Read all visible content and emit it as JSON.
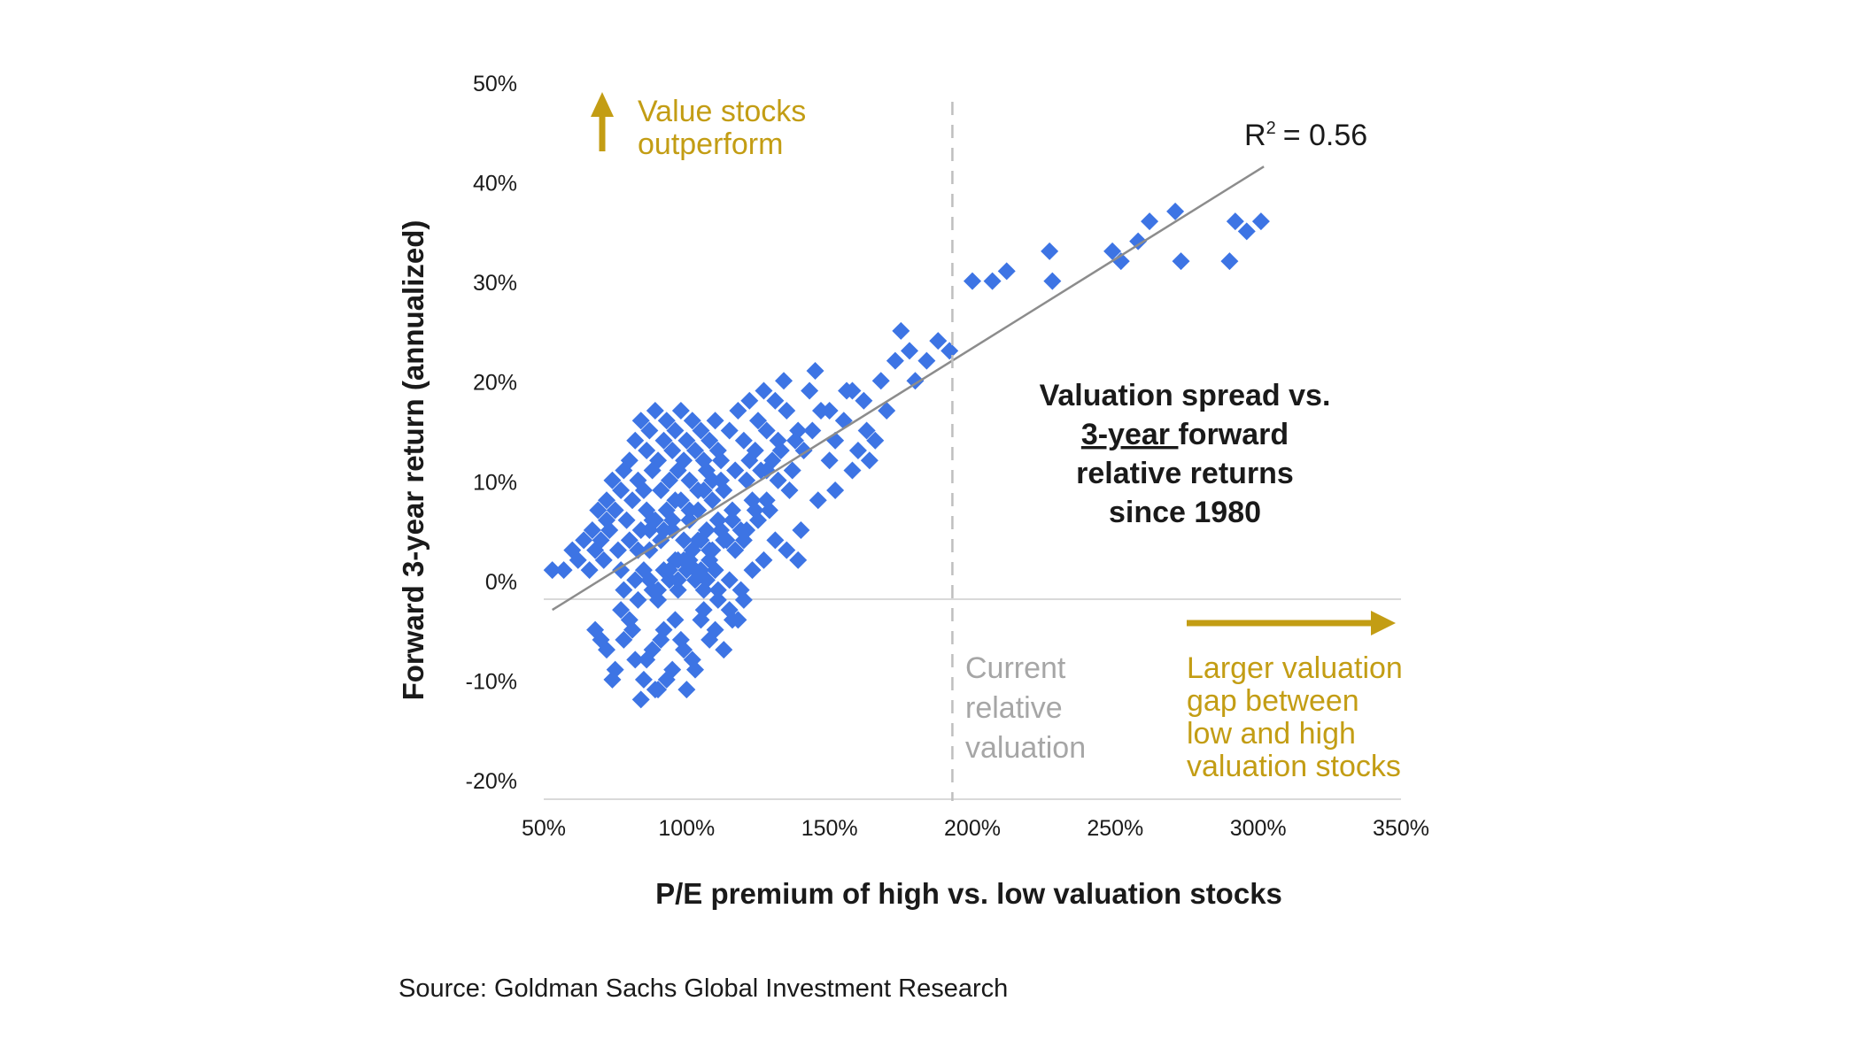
{
  "chart_data": {
    "type": "scatter",
    "title": "",
    "xlabel": "P/E premium of high vs. low valuation stocks",
    "ylabel": "Forward 3-year return (annualized)",
    "xlim": [
      50,
      350
    ],
    "ylim": [
      -20,
      50
    ],
    "x_ticks": [
      "50%",
      "100%",
      "150%",
      "200%",
      "250%",
      "300%",
      "350%"
    ],
    "y_ticks": [
      "50%",
      "40%",
      "30%",
      "20%",
      "10%",
      "0%",
      "-10%",
      "-20%"
    ],
    "grid": false,
    "point_color": "#3d74e4",
    "trend_color": "#8c8c8c",
    "trendline": {
      "r2_text": "R",
      "r2_sup": "2",
      "r2_value": "= 0.56",
      "start": [
        53,
        -1
      ],
      "end": [
        302,
        43.5
      ]
    },
    "reference_line": {
      "x": 193,
      "label_lines": [
        "Current",
        "relative",
        "valuation"
      ],
      "color": "#bfbfbf"
    },
    "annotations": {
      "value_outperform": [
        "Value stocks",
        "outperform"
      ],
      "larger_gap": [
        "Larger valuation",
        "gap between",
        "low and high",
        "valuation stocks"
      ],
      "spread_title": {
        "line1": "Valuation spread vs.",
        "line2_underlined": "3-year ",
        "line2_rest": "forward",
        "line3": "relative returns",
        "line4": "since 1980"
      },
      "gold_color": "#c39d14"
    },
    "source": "Source: Goldman Sachs Global Investment Research",
    "series": [
      {
        "x": [
          53,
          57,
          60,
          62,
          64,
          66,
          67,
          68,
          69,
          70,
          71,
          72,
          72,
          73,
          74,
          75,
          76,
          77,
          77,
          78,
          79,
          80,
          80,
          81,
          82,
          82,
          83,
          84,
          84,
          85,
          85,
          86,
          86,
          87,
          87,
          88,
          88,
          89,
          89,
          90,
          90,
          91,
          91,
          92,
          92,
          93,
          93,
          94,
          94,
          95,
          95,
          96,
          96,
          97,
          97,
          98,
          98,
          99,
          99,
          100,
          100,
          101,
          101,
          102,
          102,
          103,
          103,
          104,
          104,
          105,
          105,
          106,
          106,
          107,
          107,
          108,
          108,
          109,
          109,
          110,
          110,
          111,
          111,
          112,
          113,
          114,
          115,
          116,
          117,
          118,
          119,
          120,
          121,
          122,
          123,
          124,
          125,
          126,
          127,
          128,
          130,
          131,
          132,
          134,
          135,
          137,
          139,
          141,
          143,
          145,
          147,
          150,
          152,
          155,
          158,
          160,
          163,
          166,
          170,
          175,
          180,
          184,
          188,
          192,
          200,
          207,
          212,
          227,
          228,
          249,
          252,
          258,
          262,
          271,
          273,
          290,
          292,
          296,
          301,
          68,
          72,
          75,
          78,
          80,
          82,
          85,
          88,
          90,
          92,
          95,
          98,
          100,
          102,
          105,
          108,
          110,
          113,
          115,
          118,
          120,
          70,
          74,
          77,
          81,
          84,
          86,
          89,
          91,
          93,
          96,
          99,
          103,
          106,
          111,
          116,
          78,
          83,
          87,
          90,
          94,
          97,
          88,
          92,
          96,
          101,
          106,
          112,
          117,
          122,
          128,
          133,
          138,
          144,
          150,
          156,
          162,
          168,
          173,
          178,
          100,
          104,
          108,
          112,
          116,
          120,
          124,
          128,
          132,
          136,
          140,
          146,
          152,
          158,
          164,
          97,
          101,
          105,
          109,
          113,
          117,
          121,
          125,
          129,
          83,
          87,
          91,
          95,
          99,
          103,
          107,
          111,
          115,
          119,
          123,
          127,
          131,
          135,
          139
        ],
        "y": [
          3,
          3,
          5,
          4,
          6,
          3,
          7,
          5,
          9,
          6,
          4,
          10,
          8,
          7,
          12,
          9,
          5,
          11,
          3,
          13,
          8,
          6,
          14,
          10,
          2,
          16,
          12,
          7,
          18,
          11,
          3,
          15,
          9,
          17,
          5,
          13,
          1,
          19,
          8,
          14,
          0,
          11,
          6,
          16,
          3,
          18,
          9,
          12,
          2,
          15,
          7,
          17,
          4,
          13,
          1,
          19,
          10,
          6,
          14,
          16,
          3,
          12,
          8,
          18,
          5,
          15,
          2,
          11,
          9,
          17,
          6,
          14,
          1,
          13,
          7,
          16,
          4,
          12,
          10,
          18,
          3,
          15,
          8,
          14,
          11,
          6,
          17,
          9,
          13,
          19,
          7,
          16,
          12,
          20,
          10,
          15,
          18,
          13,
          21,
          17,
          14,
          20,
          16,
          22,
          19,
          13,
          17,
          15,
          21,
          23,
          19,
          14,
          16,
          18,
          21,
          15,
          17,
          16,
          19,
          27,
          22,
          24,
          26,
          25,
          32,
          32,
          33,
          35,
          32,
          35,
          34,
          36,
          38,
          39,
          34,
          34,
          38,
          37,
          38,
          -3,
          -5,
          -7,
          -4,
          -2,
          -6,
          -8,
          -5,
          -9,
          -3,
          -7,
          -4,
          -9,
          -6,
          -2,
          -4,
          -3,
          -5,
          -1,
          -2,
          0,
          -4,
          -8,
          -1,
          -3,
          -10,
          -6,
          -9,
          -4,
          -8,
          -2,
          -5,
          -7,
          -1,
          0,
          -2,
          1,
          0,
          2,
          1,
          3,
          4,
          8,
          7,
          10,
          9,
          11,
          12,
          13,
          14,
          13,
          15,
          16,
          17,
          19,
          21,
          20,
          22,
          24,
          25,
          4,
          6,
          5,
          7,
          8,
          6,
          9,
          10,
          12,
          11,
          7,
          10,
          11,
          13,
          14,
          2,
          4,
          3,
          5,
          6,
          5,
          7,
          8,
          9,
          5,
          7,
          6,
          8,
          4,
          3,
          2,
          1,
          2,
          1,
          3,
          4,
          6,
          5,
          4
        ]
      }
    ]
  }
}
